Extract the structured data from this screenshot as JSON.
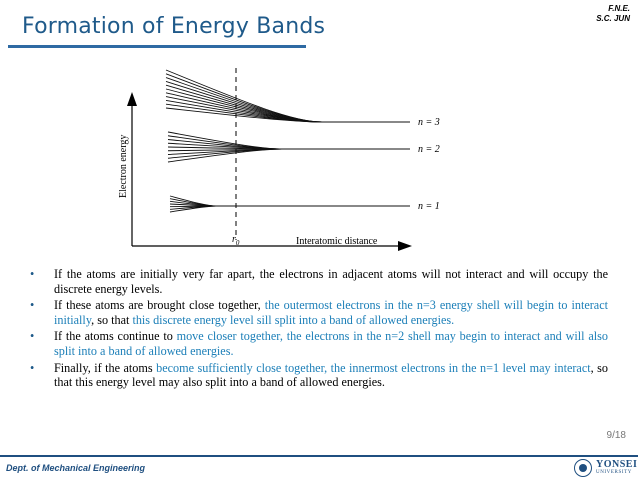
{
  "header": {
    "line1": "F.N.E.",
    "line2": "S.C. JUN"
  },
  "title": "Formation of Energy Bands",
  "diagram": {
    "y_axis_label": "Electron energy",
    "x_axis_label": "Interatomic distance",
    "r0_label": "r",
    "r0_subscript": "0",
    "levels": [
      {
        "label": "n = 3"
      },
      {
        "label": "n = 2"
      },
      {
        "label": "n = 1"
      }
    ]
  },
  "bullets": [
    {
      "parts": [
        {
          "t": "If the atoms are initially very far apart, the electrons in adjacent atoms will not interact and will occupy the discrete energy levels.",
          "hl": false
        }
      ]
    },
    {
      "parts": [
        {
          "t": "If   these atoms are brought close together, ",
          "hl": false
        },
        {
          "t": "the outermost electrons in the n=3 energy shell will begin to interact initially",
          "hl": true
        },
        {
          "t": ", so that ",
          "hl": false
        },
        {
          "t": "this discrete energy level sill split into a band of allowed energies.",
          "hl": true
        }
      ]
    },
    {
      "parts": [
        {
          "t": "If the atoms continue to ",
          "hl": false
        },
        {
          "t": "move closer together, the electrons in the n=2 shell may begin to interact and will also split into a band of allowed energies.",
          "hl": true
        }
      ]
    },
    {
      "parts": [
        {
          "t": "Finally, if the atoms ",
          "hl": false
        },
        {
          "t": "become sufficiently close together, the innermost electrons in the n=1 level may interact",
          "hl": true
        },
        {
          "t": ", so that this energy level may also split into a band of allowed energies.",
          "hl": false
        }
      ]
    }
  ],
  "page_number": "9/18",
  "footer": {
    "department": "Dept. of Mechanical Engineering"
  },
  "logo": {
    "name": "YONSEI",
    "sub": "UNIVERSITY"
  },
  "colors": {
    "title": "#1f5a8a",
    "highlight": "#1c7fb8",
    "footer": "#1f4f80"
  }
}
